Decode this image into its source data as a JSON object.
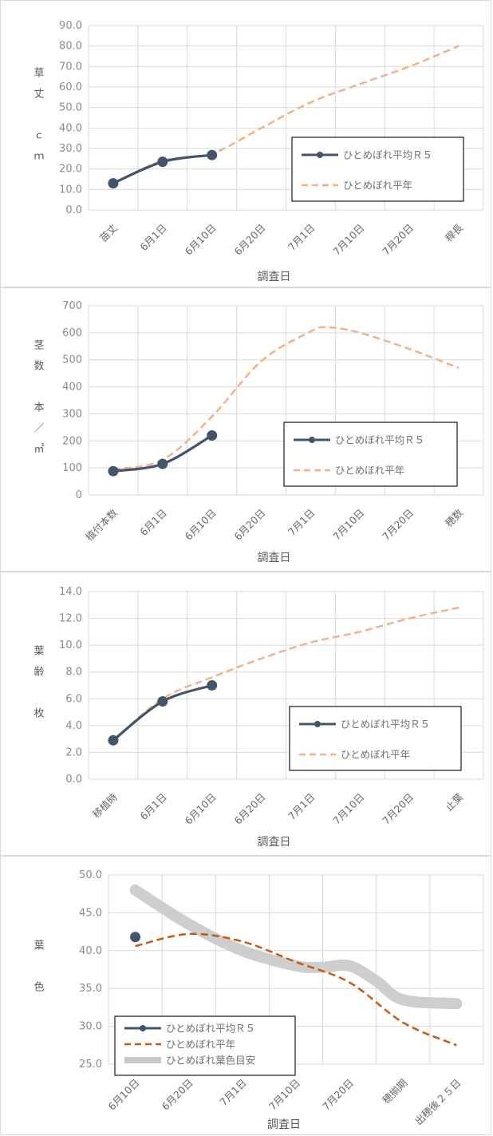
{
  "chart_data": [
    {
      "type": "line",
      "ylabel": [
        "草",
        "丈",
        "",
        "ｃ",
        "ｍ"
      ],
      "xlabel": "調査日",
      "categories": [
        "苗丈",
        "6月1日",
        "6月10日",
        "6月20日",
        "7月1日",
        "7月10日",
        "7月20日",
        "稈長"
      ],
      "ylim": [
        0,
        90
      ],
      "ytick_step": 10,
      "ytick_decimals": 1,
      "grid": true,
      "legend_position": "lower-right",
      "series": [
        {
          "name": "ひとめぼれ平均Ｒ５",
          "style": "solid-marker",
          "color": "#44546a",
          "x": [
            0,
            1,
            2
          ],
          "values": [
            13.0,
            23.5,
            26.8
          ]
        },
        {
          "name": "ひとめぼれ平年",
          "style": "dashed",
          "color": "#f4b183",
          "x": [
            0,
            1,
            2,
            3,
            4,
            5,
            6,
            7
          ],
          "values": [
            13.0,
            24.0,
            27.5,
            40.0,
            52.5,
            61.5,
            70.0,
            80.0
          ]
        }
      ]
    },
    {
      "type": "line",
      "ylabel": [
        "茎",
        "数",
        "",
        "本",
        "／",
        "㎡"
      ],
      "xlabel": "調査日",
      "categories": [
        "植付本数",
        "6月1日",
        "6月10日",
        "6月20日",
        "7月1日",
        "7月10日",
        "7月20日",
        "穂数"
      ],
      "ylim": [
        0,
        700
      ],
      "ytick_step": 100,
      "ytick_decimals": 0,
      "grid": true,
      "legend_position": "lower-right",
      "series": [
        {
          "name": "ひとめぼれ平均Ｒ５",
          "style": "solid-marker",
          "color": "#44546a",
          "x": [
            0,
            1,
            2
          ],
          "values": [
            88,
            115,
            220
          ]
        },
        {
          "name": "ひとめぼれ平年",
          "style": "dashed",
          "color": "#f4b183",
          "x": [
            0,
            1,
            2,
            3,
            4,
            4.35,
            5,
            6,
            7
          ],
          "values": [
            95,
            130,
            290,
            495,
            605,
            620,
            600,
            540,
            470
          ]
        }
      ]
    },
    {
      "type": "line",
      "ylabel": [
        "葉",
        "齢",
        "",
        "枚"
      ],
      "xlabel": "調査日",
      "categories": [
        "移植時",
        "6月1日",
        "6月10日",
        "6月20日",
        "7月1日",
        "7月10日",
        "7月20日",
        "止葉"
      ],
      "ylim": [
        0,
        14
      ],
      "ytick_step": 2,
      "ytick_decimals": 1,
      "grid": true,
      "legend_position": "lower-right",
      "series": [
        {
          "name": "ひとめぼれ平均Ｒ５",
          "style": "solid-marker",
          "color": "#44546a",
          "x": [
            0,
            1,
            2
          ],
          "values": [
            2.9,
            5.8,
            7.0
          ]
        },
        {
          "name": "ひとめぼれ平年",
          "style": "dashed",
          "color": "#f4b183",
          "x": [
            0,
            1,
            2,
            3,
            4,
            5,
            6,
            7
          ],
          "values": [
            2.9,
            6.0,
            7.6,
            9.0,
            10.2,
            11.0,
            12.0,
            12.8
          ]
        }
      ]
    },
    {
      "type": "line",
      "ylabel": [
        "葉",
        "",
        "色"
      ],
      "xlabel": "調査日",
      "categories": [
        "6月10日",
        "6月20日",
        "7月1日",
        "7月10日",
        "7月20日",
        "穂揃期",
        "出穂後２５日"
      ],
      "ylim": [
        25,
        50
      ],
      "ytick_step": 5,
      "ytick_decimals": 1,
      "grid": true,
      "legend_position": "lower-left",
      "series": [
        {
          "name": "ひとめぼれ平均Ｒ５",
          "style": "solid-marker",
          "color": "#44546a",
          "x": [
            0
          ],
          "values": [
            41.8
          ]
        },
        {
          "name": "ひとめぼれ平年",
          "style": "dashed",
          "color": "#c55a11",
          "x": [
            0,
            1,
            2,
            3,
            4,
            5,
            6
          ],
          "values": [
            40.6,
            42.2,
            41.2,
            38.5,
            35.8,
            30.5,
            27.5
          ]
        },
        {
          "name": "ひとめぼれ葉色目安",
          "style": "thick",
          "color": "#c9c9c9",
          "x": [
            0,
            1,
            2,
            3,
            3.5,
            4,
            4.5,
            5,
            6
          ],
          "values": [
            48.0,
            43.5,
            40.0,
            38.0,
            37.8,
            38.0,
            36.0,
            33.5,
            33.0
          ]
        }
      ]
    }
  ]
}
